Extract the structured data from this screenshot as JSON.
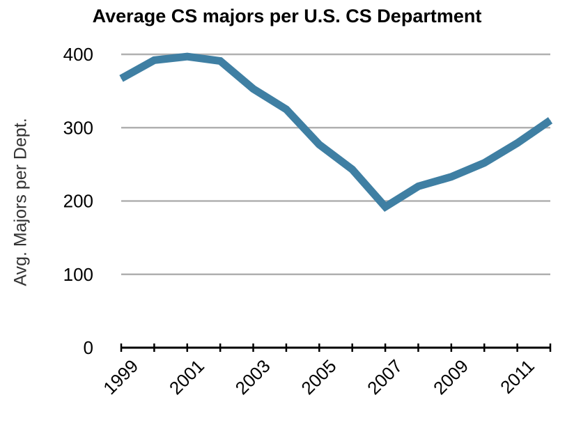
{
  "chart_data": {
    "type": "line",
    "title": "Average CS majors per U.S. CS Department",
    "xlabel": "",
    "ylabel": "Avg. Majors per Dept.",
    "x": [
      1999,
      2000,
      2001,
      2002,
      2003,
      2004,
      2005,
      2006,
      2007,
      2008,
      2009,
      2010,
      2011,
      2012
    ],
    "x_tick_labels": [
      "1999",
      "2001",
      "2003",
      "2005",
      "2007",
      "2009",
      "2011"
    ],
    "y_tick_labels": [
      "0",
      "100",
      "200",
      "300",
      "400"
    ],
    "series": [
      {
        "values": [
          367,
          392,
          397,
          391,
          353,
          325,
          277,
          243,
          192,
          220,
          233,
          252,
          279,
          310
        ]
      }
    ],
    "xlim": [
      1999,
      2012
    ],
    "ylim": [
      0,
      400
    ],
    "grid": true,
    "line_color": "#3f7fa3",
    "grid_color": "#b0b0b0"
  }
}
